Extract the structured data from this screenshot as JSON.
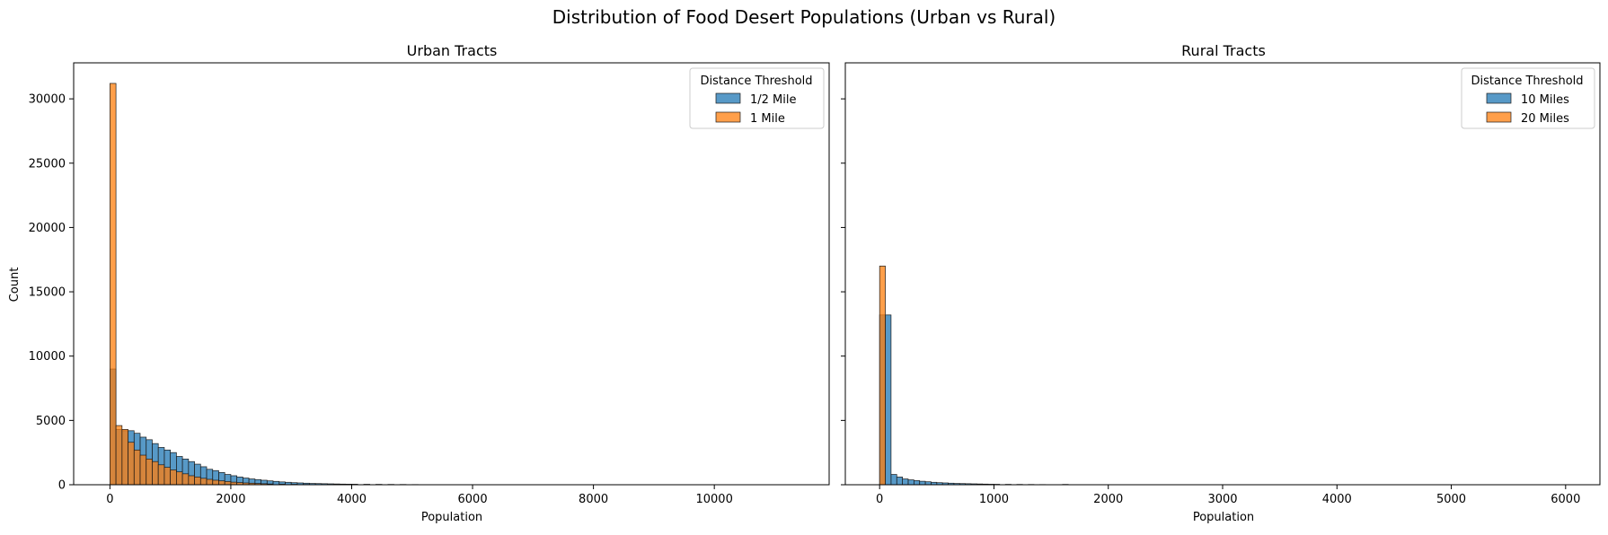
{
  "figure": {
    "suptitle": "Distribution of Food Desert Populations (Urban vs Rural)"
  },
  "colors": {
    "series1": "#1f77b4",
    "series2": "#ff7f0e"
  },
  "chart_data": [
    {
      "type": "bar",
      "subtype": "histogram",
      "title": "Urban Tracts",
      "xlabel": "Population",
      "ylabel": "Count",
      "xlim": [
        -600,
        11900
      ],
      "ylim": [
        0,
        32800
      ],
      "xticks": [
        0,
        2000,
        4000,
        6000,
        8000,
        10000
      ],
      "yticks": [
        0,
        5000,
        10000,
        15000,
        20000,
        25000,
        30000
      ],
      "bin_width": 100,
      "legend": {
        "title": "Distance Threshold",
        "placement": "upper right"
      },
      "series": [
        {
          "name": "1/2 Mile",
          "color": "#1f77b4",
          "bin_starts": [
            0,
            100,
            200,
            300,
            400,
            500,
            600,
            700,
            800,
            900,
            1000,
            1100,
            1200,
            1300,
            1400,
            1500,
            1600,
            1700,
            1800,
            1900,
            2000,
            2100,
            2200,
            2300,
            2400,
            2500,
            2600,
            2700,
            2800,
            2900,
            3000,
            3100,
            3200,
            3300,
            3400,
            3500,
            3600,
            3700,
            3800,
            3900,
            4000,
            4200,
            4400,
            4600,
            4800,
            5000
          ],
          "values": [
            9000,
            4300,
            4200,
            4200,
            4000,
            3700,
            3500,
            3200,
            2900,
            2700,
            2500,
            2200,
            2000,
            1800,
            1600,
            1400,
            1200,
            1100,
            950,
            800,
            700,
            600,
            520,
            450,
            400,
            350,
            300,
            260,
            220,
            190,
            160,
            140,
            120,
            100,
            90,
            80,
            70,
            60,
            50,
            45,
            40,
            35,
            30,
            25,
            20,
            15
          ]
        },
        {
          "name": "1 Mile",
          "color": "#ff7f0e",
          "bin_starts": [
            0,
            100,
            200,
            300,
            400,
            500,
            600,
            700,
            800,
            900,
            1000,
            1100,
            1200,
            1300,
            1400,
            1500,
            1600,
            1700,
            1800,
            1900,
            2000,
            2100,
            2200,
            2300,
            2400,
            2500,
            2600,
            2800,
            3000,
            3200
          ],
          "values": [
            31200,
            4600,
            4300,
            3300,
            2700,
            2300,
            2000,
            1800,
            1550,
            1350,
            1150,
            1000,
            850,
            700,
            600,
            500,
            420,
            350,
            300,
            250,
            200,
            170,
            140,
            120,
            100,
            80,
            60,
            40,
            30,
            20
          ]
        }
      ]
    },
    {
      "type": "bar",
      "subtype": "histogram",
      "title": "Rural Tracts",
      "xlabel": "Population",
      "ylabel": "",
      "xlim": [
        -300,
        6300
      ],
      "ylim": [
        0,
        32800
      ],
      "xticks": [
        0,
        1000,
        2000,
        3000,
        4000,
        5000,
        6000
      ],
      "yticks": [
        0,
        5000,
        10000,
        15000,
        20000,
        25000,
        30000
      ],
      "bin_width": 50,
      "legend": {
        "title": "Distance Threshold",
        "placement": "upper right"
      },
      "series": [
        {
          "name": "10 Miles",
          "color": "#1f77b4",
          "bin_starts": [
            0,
            50,
            100,
            150,
            200,
            250,
            300,
            350,
            400,
            450,
            500,
            550,
            600,
            650,
            700,
            750,
            800,
            850,
            900,
            950,
            1000,
            1100,
            1200,
            1300,
            1400,
            1600
          ],
          "values": [
            13200,
            13200,
            800,
            600,
            450,
            380,
            320,
            270,
            230,
            190,
            160,
            140,
            120,
            100,
            90,
            80,
            70,
            60,
            50,
            40,
            35,
            30,
            25,
            20,
            15,
            25
          ]
        },
        {
          "name": "20 Miles",
          "color": "#ff7f0e",
          "bin_starts": [
            0
          ],
          "values": [
            17000
          ]
        }
      ]
    }
  ]
}
